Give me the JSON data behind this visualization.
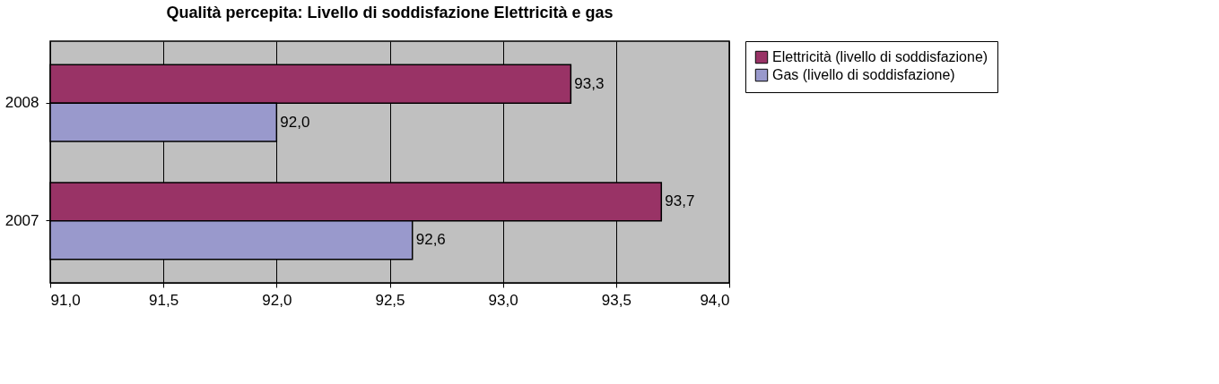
{
  "chart_data": {
    "type": "bar",
    "orientation": "horizontal",
    "title": "Qualità percepita: Livello di soddisfazione Elettricità e gas",
    "categories": [
      "2008",
      "2007"
    ],
    "series": [
      {
        "name": "Elettricità (livello di soddisfazione)",
        "color": "#993366",
        "values": [
          93.3,
          93.7
        ],
        "value_labels": [
          "93,3",
          "93,7"
        ]
      },
      {
        "name": "Gas (livello di soddisfazione)",
        "color": "#9999cc",
        "values": [
          92.0,
          92.6
        ],
        "value_labels": [
          "92,0",
          "92,6"
        ]
      }
    ],
    "xlim": [
      91,
      94
    ],
    "xticks": [
      {
        "value": 91,
        "label": "91,0"
      },
      {
        "value": 91.5,
        "label": "91,5"
      },
      {
        "value": 92,
        "label": "92,0"
      },
      {
        "value": 92.5,
        "label": "92,5"
      },
      {
        "value": 93,
        "label": "93,0"
      },
      {
        "value": 93.5,
        "label": "93,5"
      },
      {
        "value": 94,
        "label": "94,0"
      }
    ],
    "grid": "x",
    "legend": "right"
  }
}
